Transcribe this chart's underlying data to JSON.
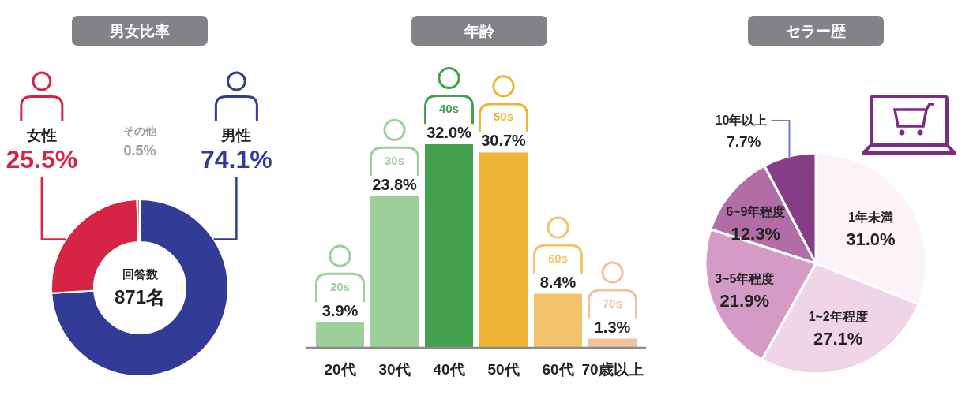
{
  "chart_data": [
    {
      "type": "donut",
      "title": "男女比率",
      "categories": [
        "男性",
        "女性",
        "その他"
      ],
      "values": [
        74.1,
        25.5,
        0.5
      ],
      "colors": [
        "#323b96",
        "#d52445",
        "#9b9b9b"
      ],
      "value_labels": [
        "74.1%",
        "25.5%",
        "0.5%"
      ],
      "legend": "top",
      "annotations": [
        "回答数",
        "871名"
      ]
    },
    {
      "type": "bar",
      "title": "年齢",
      "categories": [
        "20代",
        "30代",
        "40代",
        "50代",
        "60代",
        "70歳以上"
      ],
      "values": [
        3.9,
        23.8,
        32.0,
        30.7,
        8.4,
        1.3
      ],
      "colors": [
        "#9ccf9a",
        "#9ccf9a",
        "#43a04f",
        "#f0b434",
        "#f2c36a",
        "#f3c19b"
      ],
      "value_labels": [
        "3.9%",
        "23.8%",
        "32.0%",
        "30.7%",
        "8.4%",
        "1.3%"
      ],
      "annotations": [
        {
          "text": "20s",
          "x": "20代",
          "y": 3.9
        },
        {
          "text": "30s",
          "x": "30代",
          "y": 23.8
        },
        {
          "text": "40s",
          "x": "40代",
          "y": 32.0
        },
        {
          "text": "50s",
          "x": "50代",
          "y": 30.7
        },
        {
          "text": "60s",
          "x": "60代",
          "y": 8.4
        },
        {
          "text": "70s",
          "x": "70歳以上",
          "y": 1.3
        }
      ]
    },
    {
      "type": "pie",
      "title": "セラー歴",
      "categories": [
        "1年未満",
        "1~2年程度",
        "3~5年程度",
        "6~9年程度",
        "10年以上"
      ],
      "values": [
        31.0,
        27.1,
        21.9,
        12.3,
        7.7
      ],
      "colors": [
        "#fbf3f8",
        "#f0d5e8",
        "#d39bc6",
        "#b26ca6",
        "#853e85"
      ],
      "value_labels": [
        "31.0%",
        "27.1%",
        "21.9%",
        "12.3%",
        "7.7%"
      ]
    }
  ]
}
